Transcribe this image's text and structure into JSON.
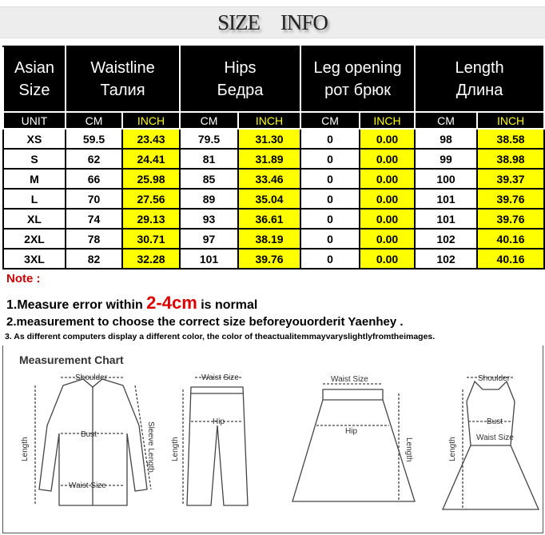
{
  "title": "SIZE    INFO",
  "headers": [
    {
      "l1": "Asian",
      "l2": "Size"
    },
    {
      "l1": "Waistline",
      "l2": "Талия"
    },
    {
      "l1": "Hips",
      "l2": "Бедра"
    },
    {
      "l1": "Leg opening",
      "l2": "рот брюк"
    },
    {
      "l1": "Length",
      "l2": "Длина"
    }
  ],
  "units": [
    "UNIT",
    "CM",
    "INCH",
    "CM",
    "INCH",
    "CM",
    "INCH",
    "CM",
    "INCH"
  ],
  "rows": [
    [
      "XS",
      "59.5",
      "23.43",
      "79.5",
      "31.30",
      "0",
      "0.00",
      "98",
      "38.58"
    ],
    [
      "S",
      "62",
      "24.41",
      "81",
      "31.89",
      "0",
      "0.00",
      "99",
      "38.98"
    ],
    [
      "M",
      "66",
      "25.98",
      "85",
      "33.46",
      "0",
      "0.00",
      "100",
      "39.37"
    ],
    [
      "L",
      "70",
      "27.56",
      "89",
      "35.04",
      "0",
      "0.00",
      "101",
      "39.76"
    ],
    [
      "XL",
      "74",
      "29.13",
      "93",
      "36.61",
      "0",
      "0.00",
      "101",
      "39.76"
    ],
    [
      "2XL",
      "78",
      "30.71",
      "97",
      "38.19",
      "0",
      "0.00",
      "102",
      "40.16"
    ],
    [
      "3XL",
      "82",
      "32.28",
      "101",
      "39.76",
      "0",
      "0.00",
      "102",
      "40.16"
    ]
  ],
  "notes": {
    "heading": "Note :",
    "line1_pre": "1.Measure error within ",
    "line1_hl": "2-4cm",
    "line1_post": " is normal",
    "line2": "2.measurement to choose the correct size beforeyouorderit Yaenhey .",
    "line3": "3. As different computers display a different color, the color of theactualitemmayvaryslightlyfromtheimages."
  },
  "chart": {
    "title": "Measurement Chart",
    "shirt": {
      "shoulder": "Shoulder",
      "bust": "Bust",
      "length": "Length",
      "sleeve": "Sleeve Length",
      "waist": "Waist Size"
    },
    "pants": {
      "waist": "Waist Size",
      "hip": "Hip",
      "length": "Length"
    },
    "skirt": {
      "waist": "Waist Size",
      "hip": "Hip",
      "length": "Length"
    },
    "dress": {
      "shoulder": "Shoulder",
      "bust": "Bust",
      "waist": "Waist Size",
      "length": "Length"
    }
  },
  "colors": {
    "highlight": "#ffff00",
    "note_red": "#cc0000",
    "header_bg": "#000000"
  }
}
